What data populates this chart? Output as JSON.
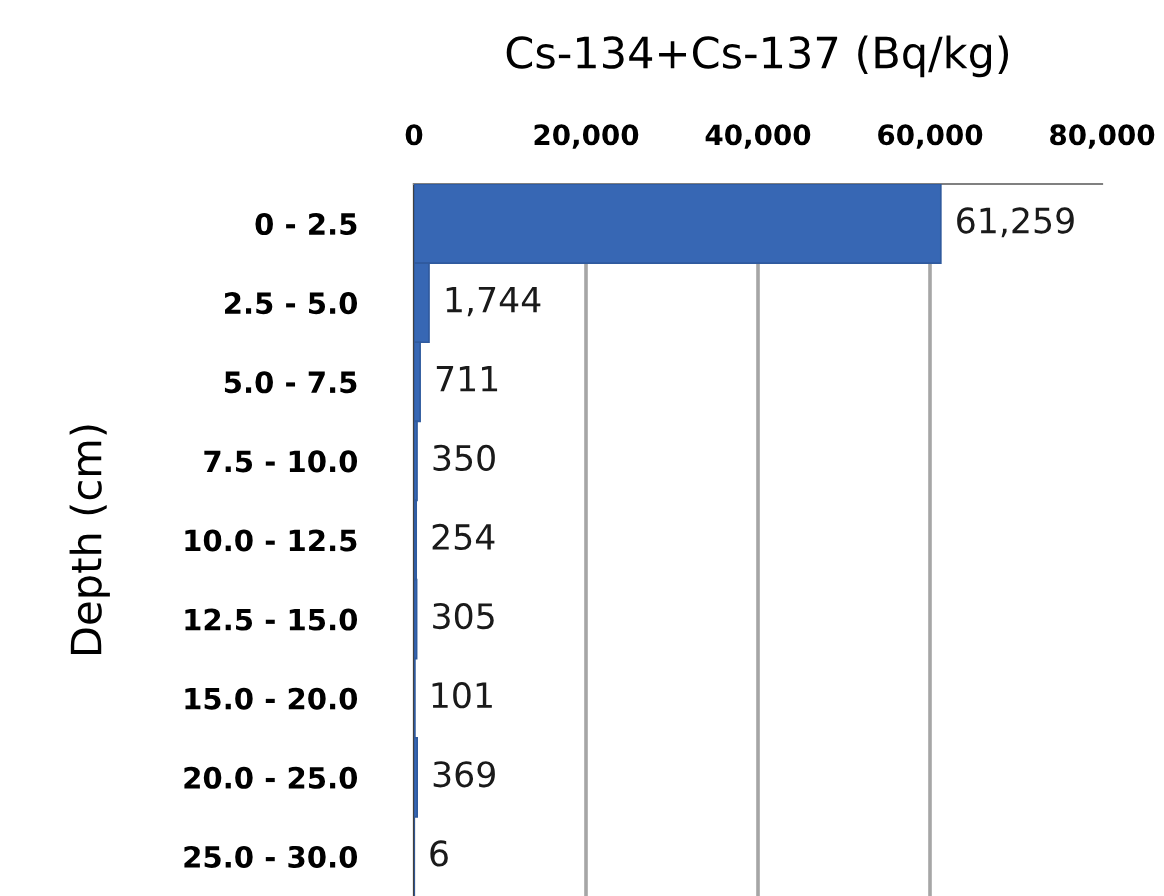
{
  "chart_data": {
    "type": "bar",
    "orientation": "horizontal",
    "xlabel": "Cs-134+Cs-137 (Bq/kg)",
    "ylabel": "Depth (cm)",
    "categories": [
      "0 - 2.5",
      "2.5 - 5.0",
      "5.0 - 7.5",
      "7.5 - 10.0",
      "10.0 - 12.5",
      "12.5 - 15.0",
      "15.0 - 20.0",
      "20.0 - 25.0",
      "25.0 - 30.0"
    ],
    "values": [
      61259,
      1744,
      711,
      350,
      254,
      305,
      101,
      369,
      6
    ],
    "value_labels": [
      "61,259",
      "1,744",
      "711",
      "350",
      "254",
      "305",
      "101",
      "369",
      "6"
    ],
    "color": "#3767b4",
    "xlim": [
      0,
      80000
    ],
    "xticks": [
      0,
      {
        "value": 20000,
        "label": "20,000"
      },
      {
        "value": 40000,
        "label": "40,000"
      },
      {
        "value": 60000,
        "label": "60,000"
      },
      {
        "value": 80000,
        "label": "80,000"
      }
    ],
    "grid": "x",
    "legend": false
  }
}
